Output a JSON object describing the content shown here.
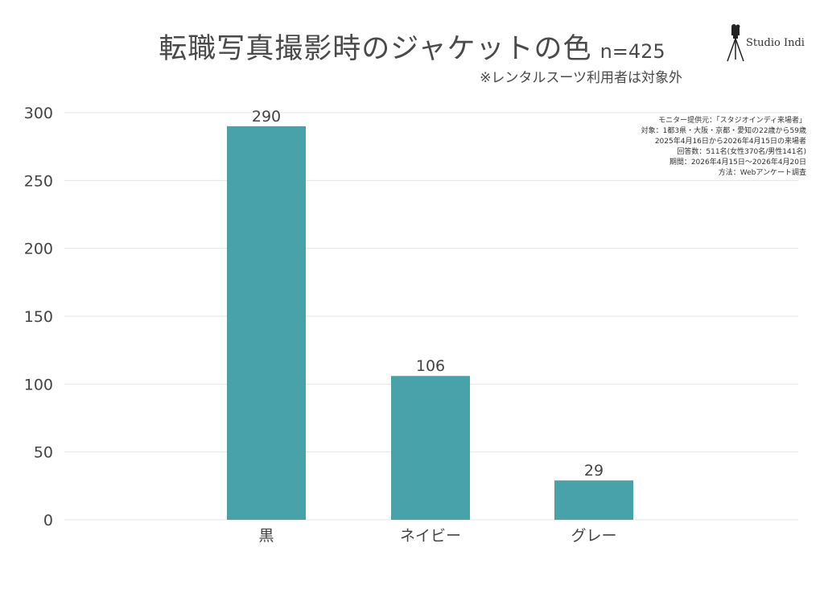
{
  "title": "転職写真撮影時のジャケットの色",
  "sample": "n=425",
  "subtitle": "※レンタルスーツ利用者は対象外",
  "logo": {
    "text": "Studio Indi",
    "icon": "camera-tripod-icon"
  },
  "notes": [
    "モニター提供元：「スタジオインディ来場者」",
    "対象：1都3県・大阪・京都・愛知の22歳から59歳",
    "2025年4月16日から2026年4月15日の来場者",
    "回答数：511名(女性370名/男性141名)",
    "期間：2026年4月15日〜2026年4月20日",
    "方法：Webアンケート調査"
  ],
  "colors": {
    "bar": "#48a2aa",
    "grid": "#e6e6e6",
    "text": "#444444"
  },
  "chart_data": {
    "type": "bar",
    "title": "転職写真撮影時のジャケットの色",
    "categories": [
      "黒",
      "ネイビー",
      "グレー"
    ],
    "values": [
      290,
      106,
      29
    ],
    "ylim": [
      0,
      300
    ],
    "yticks": [
      0,
      50,
      100,
      150,
      200,
      250,
      300
    ],
    "grid": true,
    "xlabel": "",
    "ylabel": ""
  }
}
